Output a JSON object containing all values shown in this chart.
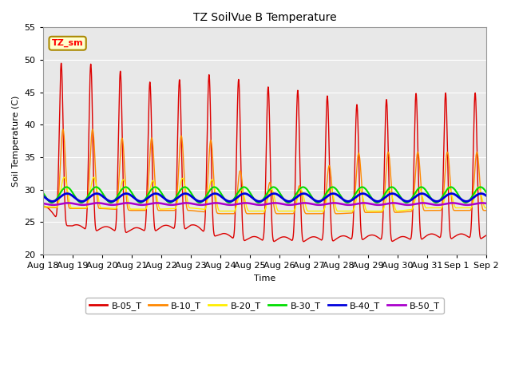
{
  "title": "TZ SoilVue B Temperature",
  "ylabel": "Soil Temperature (C)",
  "xlabel": "Time",
  "ylim": [
    20,
    55
  ],
  "xlim": [
    0,
    15
  ],
  "plot_bg_color": "#e8e8e8",
  "fig_bg_color": "#ffffff",
  "series_colors": {
    "B-05_T": "#dd0000",
    "B-10_T": "#ff8800",
    "B-20_T": "#ffee00",
    "B-30_T": "#00dd00",
    "B-40_T": "#0000dd",
    "B-50_T": "#aa00cc"
  },
  "legend_label": "TZ_sm",
  "legend_bg": "#ffffcc",
  "legend_border": "#aa8800",
  "xtick_labels": [
    "Aug 18",
    "Aug 19",
    "Aug 20",
    "Aug 21",
    "Aug 22",
    "Aug 23",
    "Aug 24",
    "Aug 25",
    "Aug 26",
    "Aug 27",
    "Aug 28",
    "Aug 29",
    "Aug 30",
    "Aug 31",
    "Sep 1",
    "Sep 2"
  ],
  "ytick_vals": [
    20,
    25,
    30,
    35,
    40,
    45,
    50,
    55
  ],
  "b05_peaks": [
    50.0,
    49.5,
    49.5,
    47.8,
    46.3,
    47.8,
    48.0,
    46.7,
    45.7,
    45.5,
    44.3,
    43.0,
    45.0,
    45.2
  ],
  "b05_mins": [
    26.0,
    22.8,
    22.5,
    22.3,
    22.8,
    23.0,
    21.5,
    21.0,
    21.0,
    21.0,
    21.2,
    21.5,
    21.0,
    21.5
  ],
  "b10_peaks": [
    39.5,
    39.5,
    39.5,
    37.5,
    38.5,
    38.5,
    37.5,
    31.0,
    31.5,
    30.5,
    35.5,
    36.0,
    36.0,
    36.0
  ],
  "b10_mins": [
    27.0,
    26.8,
    26.8,
    26.5,
    26.5,
    26.5,
    26.0,
    26.0,
    26.0,
    26.0,
    26.0,
    26.2,
    26.2,
    26.5
  ],
  "b20_peaks": [
    32.0,
    32.0,
    32.0,
    31.5,
    31.5,
    32.0,
    31.5,
    29.5,
    30.5,
    30.0,
    30.5,
    30.0,
    30.0,
    30.5
  ],
  "b20_mins": [
    27.2,
    27.0,
    27.0,
    26.8,
    26.8,
    27.0,
    26.5,
    26.5,
    26.5,
    26.5,
    26.5,
    26.5,
    26.5,
    27.0
  ],
  "b30_base": 29.2,
  "b30_amp": 1.2,
  "b40_base": 28.8,
  "b40_amp": 0.6,
  "b50_base": 27.8,
  "b50_amp": 0.15
}
